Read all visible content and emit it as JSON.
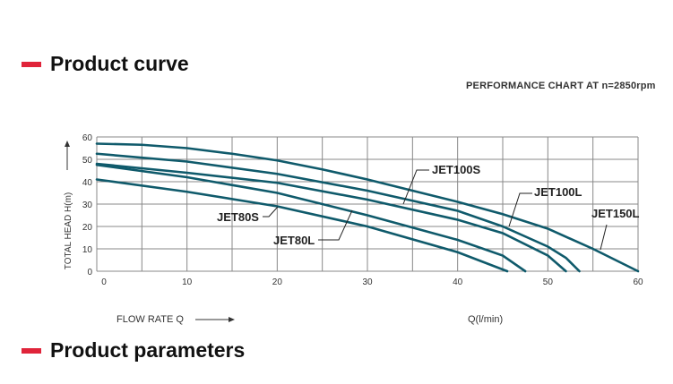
{
  "headings": {
    "curve": "Product curve",
    "params": "Product parameters"
  },
  "accent": "#e0243a",
  "chart_data": {
    "type": "line",
    "title": "PERFORMANCE CHART AT n=2850rpm",
    "xlabel": "FLOW RATE Q",
    "xunit": "Q(l/min)",
    "ylabel": "TOTAL HEAD H(m)",
    "xlim": [
      0,
      60
    ],
    "ylim": [
      0,
      60
    ],
    "xticks": [
      0,
      10,
      20,
      30,
      40,
      50,
      60
    ],
    "yticks": [
      0,
      10,
      20,
      30,
      40,
      50,
      60
    ],
    "grid": true,
    "line_color": "#0f5a6b",
    "series": [
      {
        "name": "JET150L",
        "x": [
          0,
          5,
          10,
          15,
          20,
          25,
          30,
          35,
          40,
          45,
          50,
          55,
          60
        ],
        "y": [
          57,
          56.5,
          55,
          52.5,
          49.5,
          45.5,
          41,
          36,
          31,
          25.5,
          19,
          10,
          0
        ]
      },
      {
        "name": "JET100L",
        "x": [
          0,
          10,
          20,
          30,
          35,
          40,
          45,
          50,
          52,
          53.5
        ],
        "y": [
          52.5,
          49,
          43.5,
          36,
          31.5,
          27,
          20,
          11,
          6,
          0
        ]
      },
      {
        "name": "JET100S",
        "x": [
          0,
          10,
          20,
          30,
          40,
          45,
          50,
          52
        ],
        "y": [
          48,
          44,
          39.5,
          32,
          23,
          17,
          7,
          0
        ]
      },
      {
        "name": "JET80L",
        "x": [
          0,
          10,
          20,
          30,
          40,
          45,
          47.5
        ],
        "y": [
          47.5,
          42,
          35,
          25,
          14,
          7,
          0
        ]
      },
      {
        "name": "JET80S",
        "x": [
          0,
          10,
          20,
          30,
          40,
          45.5
        ],
        "y": [
          41,
          35.5,
          29,
          20,
          8.5,
          0
        ]
      }
    ]
  }
}
